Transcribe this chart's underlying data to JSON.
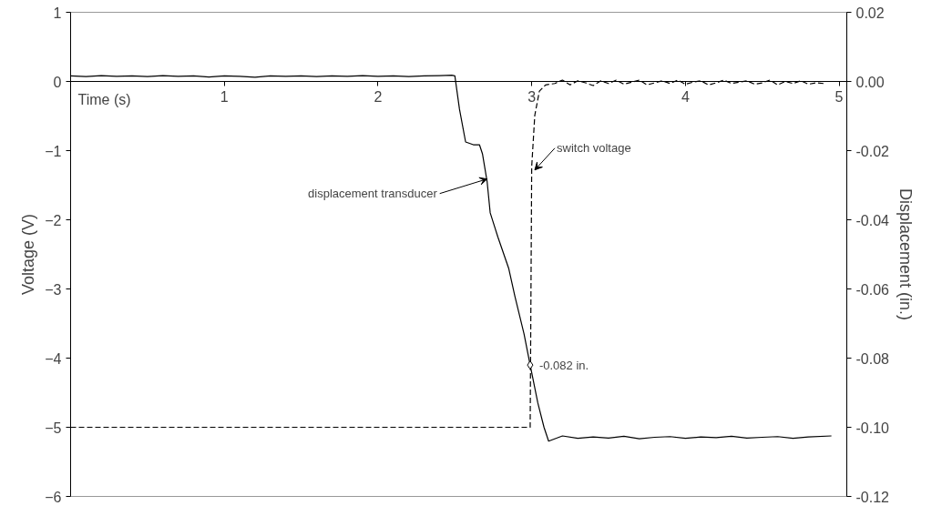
{
  "chart_data": {
    "type": "line",
    "xlabel": "Time (s)",
    "ylabel": "Voltage (V)",
    "y2label": "Displacement (in.)",
    "xlim": [
      0,
      5.05
    ],
    "xticks": [
      1,
      2,
      3,
      4,
      5
    ],
    "ylim": [
      -6,
      1
    ],
    "yticks": [
      -6,
      -5,
      -4,
      -3,
      -2,
      -1,
      0,
      1
    ],
    "y2lim": [
      -0.12,
      0.02
    ],
    "y2ticks": [
      {
        "value": -0.12,
        "label": "-0.12"
      },
      {
        "value": -0.1,
        "label": "-0.10"
      },
      {
        "value": -0.08,
        "label": "-0.08"
      },
      {
        "value": -0.06,
        "label": "-0.06"
      },
      {
        "value": -0.04,
        "label": "-0.04"
      },
      {
        "value": -0.02,
        "label": "-0.02"
      },
      {
        "value": 0,
        "label": "0.00"
      },
      {
        "value": 0.02,
        "label": "0.02"
      }
    ],
    "grid": false,
    "series": [
      {
        "color": "#000000",
        "line_style": "dashed",
        "x": [
          0,
          1,
          2,
          2.99,
          3.0,
          3.02,
          3.05,
          3.09,
          3.15,
          3.2,
          3.25,
          3.3,
          3.35,
          3.4,
          3.45,
          3.5,
          3.55,
          3.6,
          3.65,
          3.7,
          3.75,
          3.8,
          3.85,
          3.9,
          3.95,
          4.0,
          4.05,
          4.1,
          4.15,
          4.2,
          4.25,
          4.3,
          4.35,
          4.4,
          4.45,
          4.5,
          4.55,
          4.6,
          4.65,
          4.7,
          4.75,
          4.8,
          4.85,
          4.9
        ],
        "values": [
          -5,
          -5,
          -5,
          -5,
          -1.23,
          -0.49,
          -0.14,
          -0.05,
          -0.03,
          0.02,
          -0.05,
          0.01,
          -0.02,
          -0.06,
          0.01,
          -0.03,
          0.02,
          -0.04,
          -0.01,
          0.02,
          -0.05,
          -0.02,
          0.01,
          -0.03,
          0.02,
          -0.04,
          -0.01,
          0.01,
          -0.05,
          -0.02,
          0.02,
          -0.03,
          -0.01,
          0.01,
          -0.04,
          -0.02,
          0.02,
          -0.05,
          0.0,
          -0.03,
          0.01,
          -0.04,
          -0.02,
          -0.03
        ]
      },
      {
        "color": "#000000",
        "line_style": "solid",
        "axis": "y2",
        "x": [
          0,
          0.1,
          0.2,
          0.3,
          0.4,
          0.5,
          0.6,
          0.7,
          0.8,
          0.9,
          1.0,
          1.1,
          1.2,
          1.3,
          1.4,
          1.5,
          1.6,
          1.7,
          1.8,
          1.9,
          2.0,
          2.1,
          2.2,
          2.3,
          2.4,
          2.48,
          2.5,
          2.53,
          2.57,
          2.62,
          2.66,
          2.68,
          2.71,
          2.73,
          2.78,
          2.85,
          2.89,
          2.95,
          2.99,
          3.04,
          3.08,
          3.11,
          3.2,
          3.3,
          3.4,
          3.5,
          3.6,
          3.7,
          3.8,
          3.9,
          4.0,
          4.1,
          4.2,
          4.3,
          4.4,
          4.5,
          4.6,
          4.7,
          4.8,
          4.95
        ],
        "values": [
          0.0016,
          0.0014,
          0.0017,
          0.0015,
          0.0016,
          0.0014,
          0.0017,
          0.0015,
          0.0016,
          0.0013,
          0.0016,
          0.0015,
          0.0012,
          0.0016,
          0.0015,
          0.0016,
          0.0014,
          0.0016,
          0.0015,
          0.0017,
          0.0015,
          0.0016,
          0.0014,
          0.0016,
          0.0017,
          0.0018,
          0.0016,
          -0.008,
          -0.0175,
          -0.0183,
          -0.0183,
          -0.021,
          -0.029,
          -0.038,
          -0.045,
          -0.054,
          -0.062,
          -0.073,
          -0.082,
          -0.093,
          -0.1,
          -0.104,
          -0.1025,
          -0.1032,
          -0.1028,
          -0.1031,
          -0.1026,
          -0.1033,
          -0.1029,
          -0.1027,
          -0.1032,
          -0.1028,
          -0.103,
          -0.1026,
          -0.1031,
          -0.1029,
          -0.1027,
          -0.1032,
          -0.1028,
          -0.1025
        ]
      },
      {
        "type": "scatter",
        "color": "#000000",
        "marker": "diamond",
        "axis": "y2",
        "x": [
          2.99
        ],
        "values": [
          -0.082
        ]
      }
    ],
    "annotations": [
      {
        "text": "displacement transducer",
        "x": 2.71,
        "y": -1.41
      },
      {
        "text": "switch voltage",
        "x": 3.02,
        "y": -1.28
      },
      {
        "text": "-0.082 in.",
        "x": 2.99,
        "y": -4.1
      }
    ]
  }
}
